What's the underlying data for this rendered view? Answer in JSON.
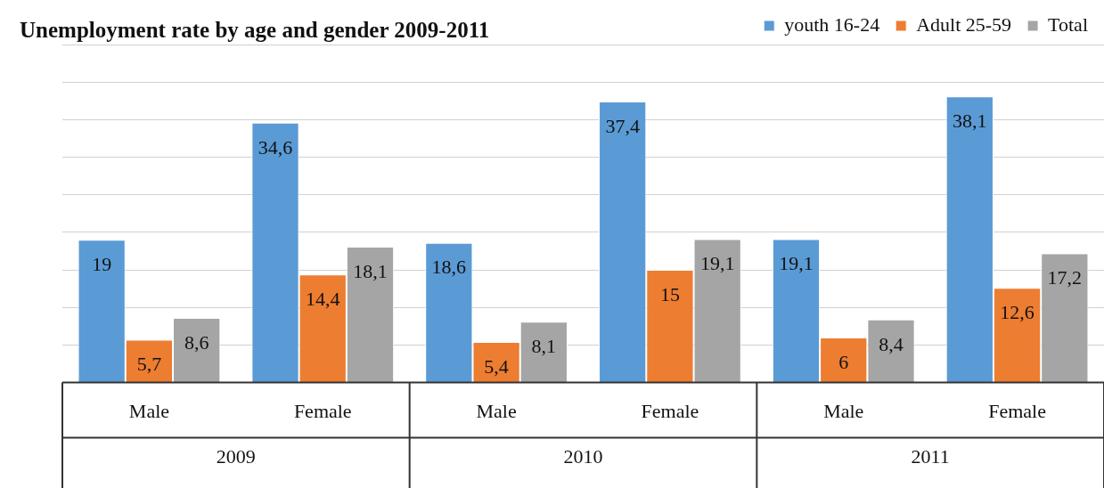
{
  "chart_data": {
    "type": "bar",
    "title": "Unemployment rate by age and gender 2009-2011",
    "categories": [
      "Male",
      "Female",
      "Male",
      "Female",
      "Male",
      "Female"
    ],
    "series": [
      {
        "name": "youth 16-24",
        "color": "#5b9bd5",
        "values": [
          19,
          34.6,
          18.6,
          37.4,
          19.1,
          38.1
        ],
        "value_labels": [
          "19",
          "34,6",
          "18,6",
          "37,4",
          "19,1",
          "38,1"
        ]
      },
      {
        "name": "Adult 25-59",
        "color": "#ed7d31",
        "values": [
          5.7,
          14.4,
          5.4,
          15,
          6,
          12.6
        ],
        "value_labels": [
          "5,7",
          "14,4",
          "5,4",
          "15",
          "6",
          "12,6"
        ]
      },
      {
        "name": "Total",
        "color": "#a5a5a5",
        "values": [
          8.6,
          18.1,
          8.1,
          19.1,
          8.4,
          17.2
        ],
        "value_labels": [
          "8,6",
          "18,1",
          "8,1",
          "19,1",
          "8,4",
          "17,2"
        ]
      }
    ],
    "annotations": [
      "2009",
      "2010",
      "2011"
    ],
    "ylim": [
      0,
      45
    ],
    "yticks": [
      0,
      5,
      10,
      15,
      20,
      25,
      30,
      35,
      40,
      45
    ],
    "tick_labels": "x",
    "grid": "y",
    "legend": "top right"
  }
}
